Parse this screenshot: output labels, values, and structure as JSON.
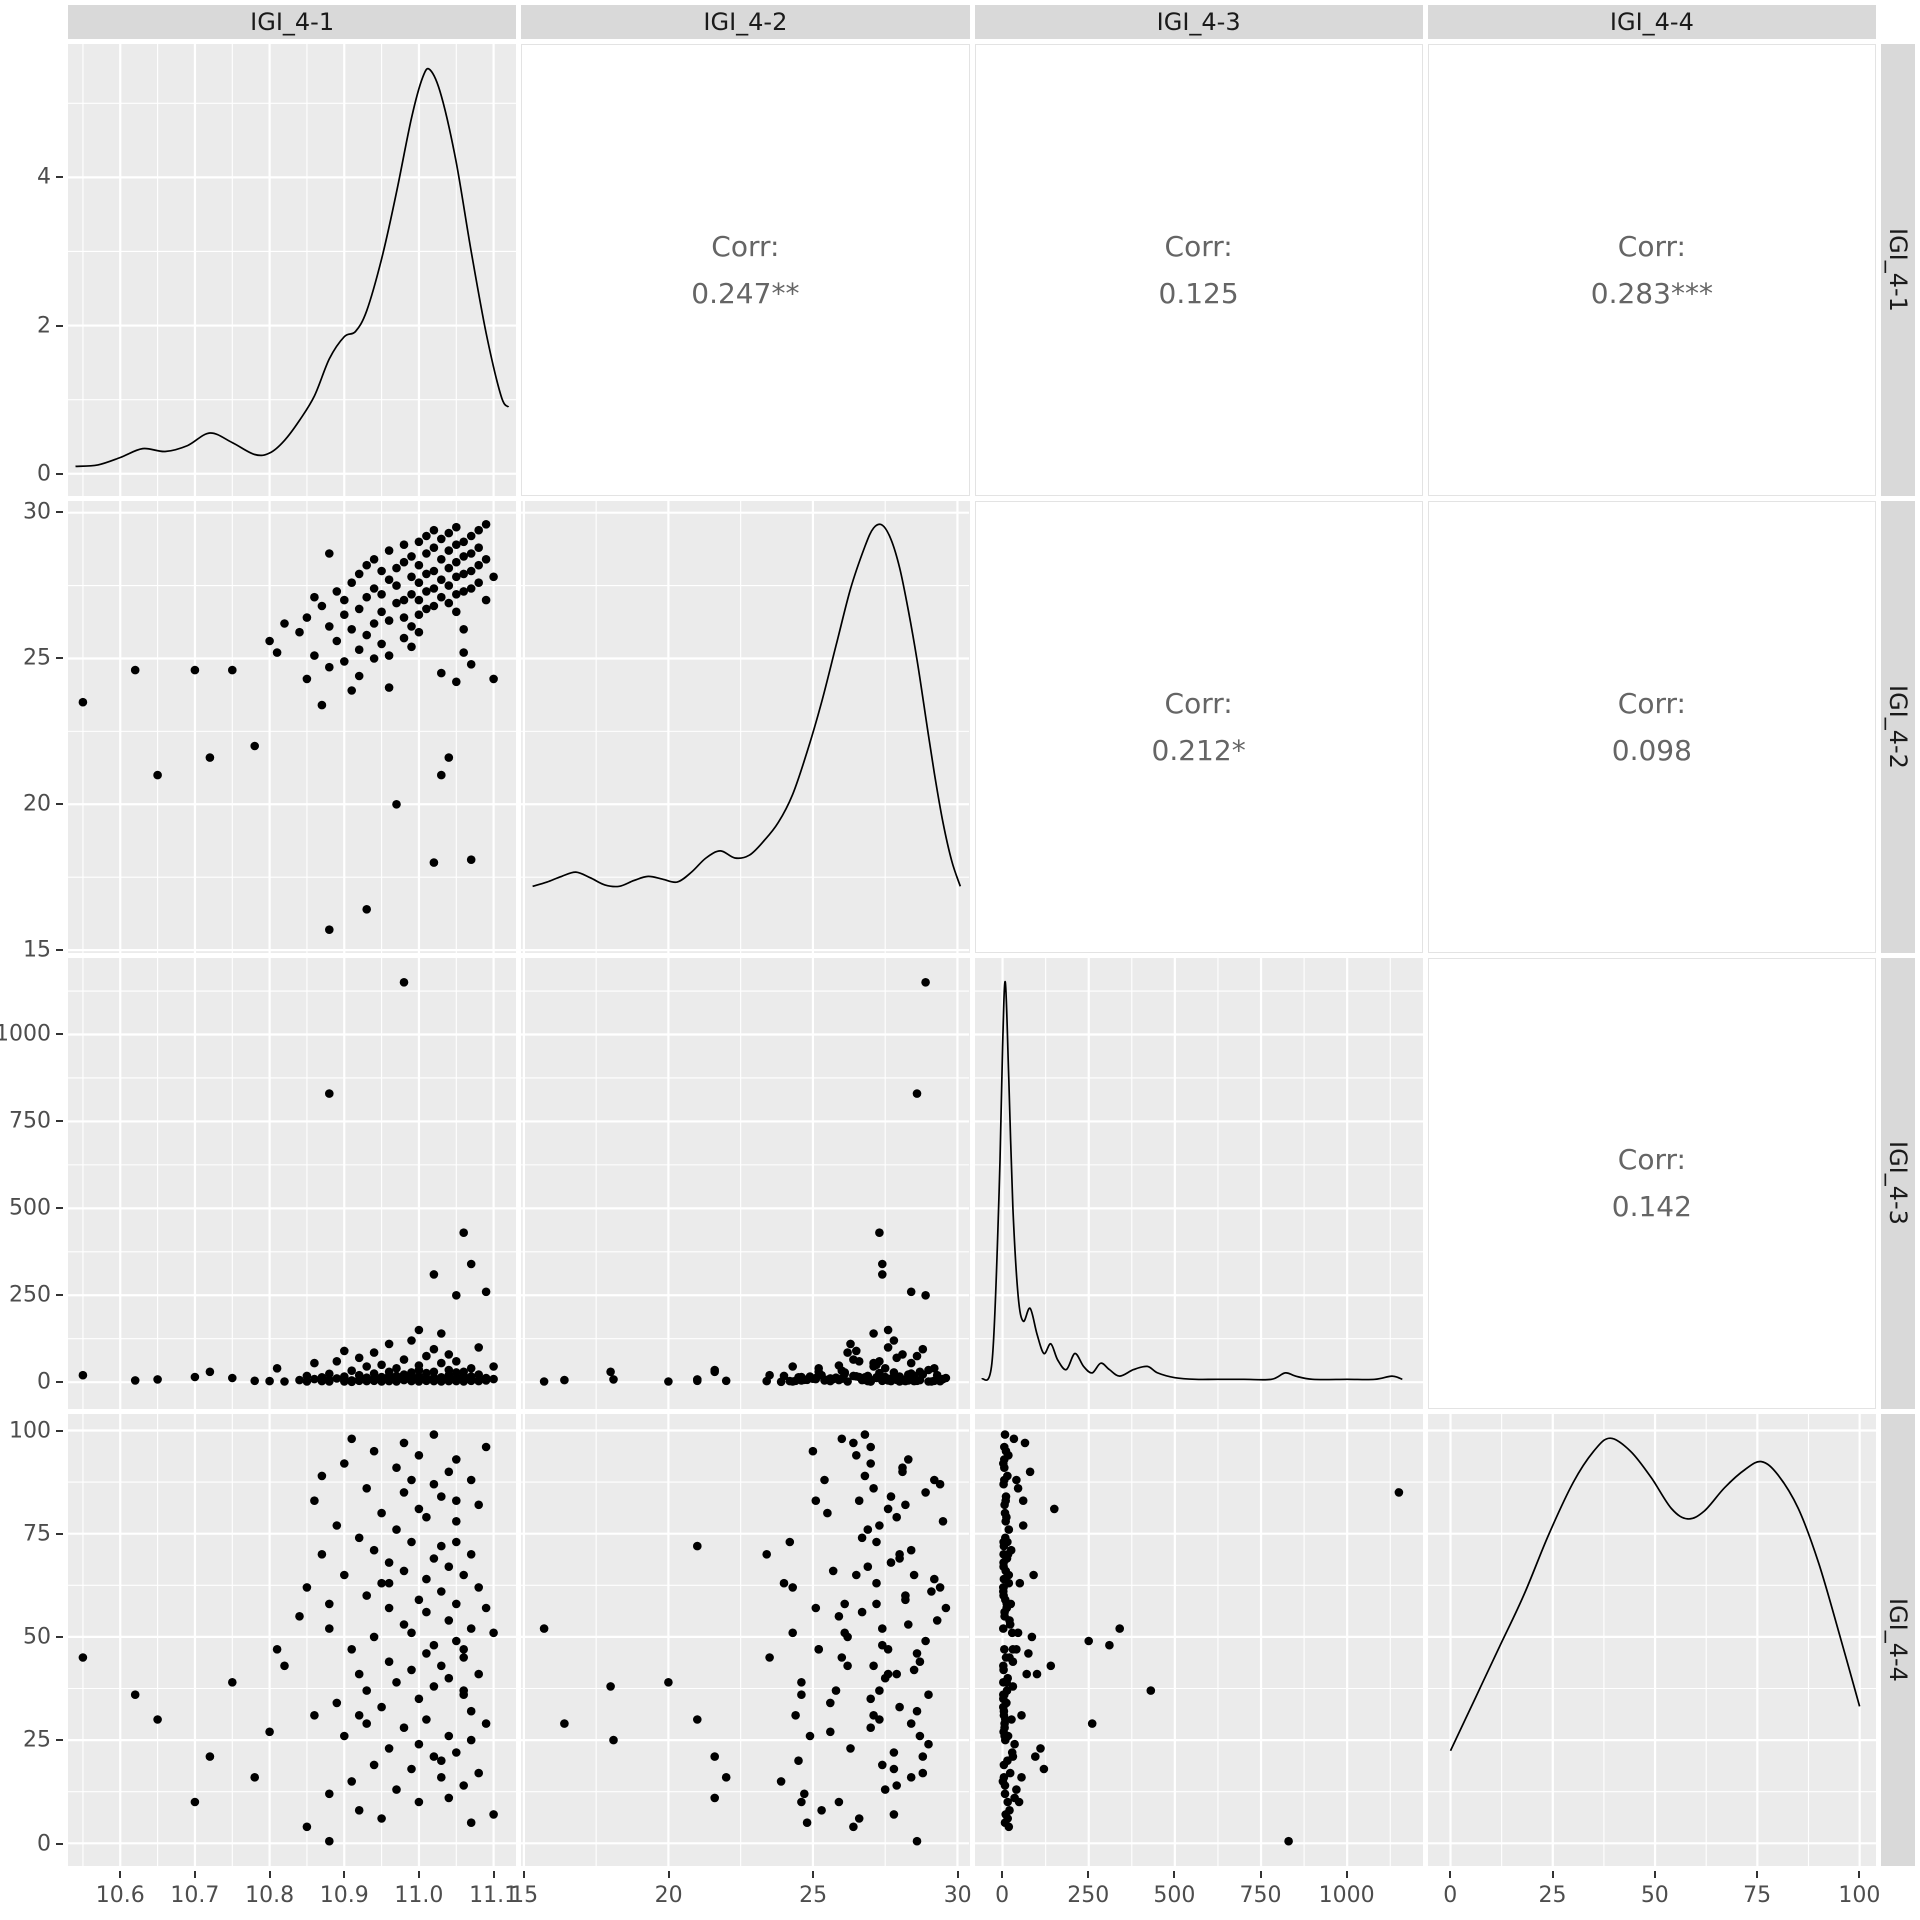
{
  "colors": {
    "panel_bg": "#EBEBEB",
    "grid": "#FFFFFF",
    "strip_bg": "#D9D9D9",
    "point": "#000000",
    "line": "#000000",
    "corr_text": "#656565",
    "tick_text": "#4D4D4D"
  },
  "chart_data": {
    "type": "scatter",
    "subtype": "scatterplot-matrix-ggpairs",
    "variables": [
      "IGI_4-1",
      "IGI_4-2",
      "IGI_4-3",
      "IGI_4-4"
    ],
    "corr_prefix": "Corr:",
    "correlations": {
      "r0c1": "0.247**",
      "r0c2": "0.125",
      "r0c3": "0.283***",
      "r1c2": "0.212*",
      "r1c3": "0.098",
      "r2c3": "0.142"
    },
    "axes": [
      {
        "name": "IGI_4-1",
        "domain": [
          10.53,
          11.13
        ],
        "ticks": [
          10.6,
          10.7,
          10.8,
          10.9,
          11.0,
          11.1
        ],
        "tick_labels": [
          "10.6",
          "10.7",
          "10.8",
          "10.9",
          "11.0",
          "11.1"
        ]
      },
      {
        "name": "IGI_4-2",
        "domain": [
          14.9,
          30.4
        ],
        "ticks": [
          15,
          20,
          25,
          30
        ],
        "tick_labels": [
          "15",
          "20",
          "25",
          "30"
        ]
      },
      {
        "name": "IGI_4-3",
        "domain": [
          -80,
          1220
        ],
        "ticks": [
          0,
          250,
          500,
          750,
          1000
        ],
        "tick_labels": [
          "0",
          "250",
          "500",
          "750",
          "1000"
        ]
      },
      {
        "name": "IGI_4-4",
        "domain": [
          -5.5,
          104
        ],
        "ticks": [
          0,
          25,
          50,
          75,
          100
        ],
        "tick_labels": [
          "0",
          "25",
          "50",
          "75",
          "100"
        ]
      }
    ],
    "density_axis": {
      "domain": [
        -0.3,
        5.8
      ],
      "ticks": [
        0,
        2,
        4
      ],
      "tick_labels": [
        "0",
        "2",
        "4"
      ]
    },
    "densities": [
      [
        [
          10.54,
          0.1
        ],
        [
          10.57,
          0.12
        ],
        [
          10.6,
          0.22
        ],
        [
          10.63,
          0.34
        ],
        [
          10.66,
          0.3
        ],
        [
          10.69,
          0.38
        ],
        [
          10.72,
          0.55
        ],
        [
          10.75,
          0.42
        ],
        [
          10.78,
          0.26
        ],
        [
          10.8,
          0.28
        ],
        [
          10.82,
          0.45
        ],
        [
          10.84,
          0.72
        ],
        [
          10.86,
          1.05
        ],
        [
          10.88,
          1.55
        ],
        [
          10.9,
          1.85
        ],
        [
          10.915,
          1.92
        ],
        [
          10.93,
          2.2
        ],
        [
          10.95,
          2.9
        ],
        [
          10.97,
          3.8
        ],
        [
          10.99,
          4.8
        ],
        [
          11.005,
          5.35
        ],
        [
          11.015,
          5.45
        ],
        [
          11.03,
          5.1
        ],
        [
          11.05,
          4.2
        ],
        [
          11.07,
          3.0
        ],
        [
          11.09,
          1.9
        ],
        [
          11.11,
          1.05
        ],
        [
          11.12,
          0.9
        ]
      ],
      [
        [
          15.3,
          0.03
        ],
        [
          15.8,
          0.033
        ],
        [
          16.3,
          0.037
        ],
        [
          16.8,
          0.04
        ],
        [
          17.3,
          0.036
        ],
        [
          17.8,
          0.031
        ],
        [
          18.3,
          0.03
        ],
        [
          18.8,
          0.034
        ],
        [
          19.3,
          0.037
        ],
        [
          19.8,
          0.035
        ],
        [
          20.3,
          0.033
        ],
        [
          20.8,
          0.04
        ],
        [
          21.3,
          0.05
        ],
        [
          21.8,
          0.055
        ],
        [
          22.3,
          0.05
        ],
        [
          22.8,
          0.052
        ],
        [
          23.3,
          0.062
        ],
        [
          23.8,
          0.075
        ],
        [
          24.3,
          0.095
        ],
        [
          24.8,
          0.125
        ],
        [
          25.3,
          0.16
        ],
        [
          25.8,
          0.2
        ],
        [
          26.3,
          0.24
        ],
        [
          26.8,
          0.27
        ],
        [
          27.1,
          0.283
        ],
        [
          27.4,
          0.285
        ],
        [
          27.7,
          0.275
        ],
        [
          28.0,
          0.255
        ],
        [
          28.3,
          0.225
        ],
        [
          28.6,
          0.19
        ],
        [
          28.9,
          0.15
        ],
        [
          29.2,
          0.11
        ],
        [
          29.5,
          0.075
        ],
        [
          29.8,
          0.048
        ],
        [
          30.1,
          0.03
        ]
      ],
      [
        [
          -60,
          0.0002
        ],
        [
          -30,
          0.0008
        ],
        [
          -10,
          0.006
        ],
        [
          0,
          0.0105
        ],
        [
          8,
          0.0125
        ],
        [
          18,
          0.0095
        ],
        [
          30,
          0.0055
        ],
        [
          45,
          0.0028
        ],
        [
          60,
          0.002
        ],
        [
          80,
          0.0024
        ],
        [
          100,
          0.0016
        ],
        [
          120,
          0.001
        ],
        [
          140,
          0.0013
        ],
        [
          160,
          0.0008
        ],
        [
          185,
          0.0005
        ],
        [
          210,
          0.001
        ],
        [
          235,
          0.0006
        ],
        [
          260,
          0.0004
        ],
        [
          285,
          0.0007
        ],
        [
          310,
          0.0005
        ],
        [
          340,
          0.0003
        ],
        [
          380,
          0.0005
        ],
        [
          420,
          0.0006
        ],
        [
          450,
          0.0004
        ],
        [
          500,
          0.00025
        ],
        [
          560,
          0.0002
        ],
        [
          620,
          0.0002
        ],
        [
          700,
          0.0002
        ],
        [
          780,
          0.0002
        ],
        [
          820,
          0.0004
        ],
        [
          850,
          0.0003
        ],
        [
          900,
          0.0002
        ],
        [
          1000,
          0.0002
        ],
        [
          1080,
          0.0002
        ],
        [
          1130,
          0.0003
        ],
        [
          1160,
          0.0002
        ]
      ],
      [
        [
          0,
          0.0035
        ],
        [
          6,
          0.0055
        ],
        [
          12,
          0.0075
        ],
        [
          18,
          0.0095
        ],
        [
          24,
          0.0118
        ],
        [
          30,
          0.0138
        ],
        [
          35,
          0.015
        ],
        [
          39,
          0.0155
        ],
        [
          44,
          0.015
        ],
        [
          49,
          0.014
        ],
        [
          54,
          0.0128
        ],
        [
          58,
          0.0124
        ],
        [
          62,
          0.0127
        ],
        [
          67,
          0.0136
        ],
        [
          72,
          0.0143
        ],
        [
          76,
          0.0146
        ],
        [
          80,
          0.0141
        ],
        [
          85,
          0.0128
        ],
        [
          90,
          0.0107
        ],
        [
          95,
          0.008
        ],
        [
          100,
          0.0052
        ]
      ]
    ],
    "points": [
      [
        10.55,
        23.5,
        20,
        45
      ],
      [
        10.62,
        24.6,
        5,
        36
      ],
      [
        10.65,
        21.0,
        8,
        30
      ],
      [
        10.7,
        24.6,
        15,
        10
      ],
      [
        10.72,
        21.6,
        30,
        21
      ],
      [
        10.75,
        24.6,
        12,
        39
      ],
      [
        10.78,
        22.0,
        4,
        16
      ],
      [
        10.8,
        25.6,
        3,
        27
      ],
      [
        10.81,
        25.2,
        40,
        47
      ],
      [
        10.82,
        26.2,
        2,
        43
      ],
      [
        10.84,
        25.9,
        6,
        55
      ],
      [
        10.85,
        26.4,
        18,
        4
      ],
      [
        10.85,
        24.3,
        2,
        62
      ],
      [
        10.86,
        27.1,
        55,
        31
      ],
      [
        10.86,
        25.1,
        9,
        83
      ],
      [
        10.87,
        26.8,
        14,
        89
      ],
      [
        10.87,
        23.4,
        3,
        70
      ],
      [
        10.88,
        28.6,
        830,
        0.5
      ],
      [
        10.88,
        26.1,
        24,
        58
      ],
      [
        10.88,
        24.7,
        7,
        12
      ],
      [
        10.88,
        15.7,
        2,
        52
      ],
      [
        10.89,
        27.3,
        60,
        77
      ],
      [
        10.89,
        25.6,
        11,
        34
      ],
      [
        10.9,
        27.0,
        2,
        92
      ],
      [
        10.9,
        26.5,
        90,
        65
      ],
      [
        10.9,
        24.9,
        16,
        26
      ],
      [
        10.91,
        27.6,
        5,
        47
      ],
      [
        10.91,
        26.0,
        33,
        98
      ],
      [
        10.91,
        23.9,
        1,
        15
      ],
      [
        10.92,
        27.9,
        70,
        41
      ],
      [
        10.92,
        26.7,
        8,
        74
      ],
      [
        10.92,
        25.3,
        20,
        8
      ],
      [
        10.92,
        24.4,
        4,
        31
      ],
      [
        10.93,
        28.2,
        3,
        60
      ],
      [
        10.93,
        27.1,
        45,
        86
      ],
      [
        10.93,
        25.8,
        13,
        37
      ],
      [
        10.93,
        16.4,
        6,
        29
      ],
      [
        10.94,
        28.4,
        25,
        71
      ],
      [
        10.94,
        27.4,
        4,
        19
      ],
      [
        10.94,
        26.2,
        85,
        50
      ],
      [
        10.94,
        25.0,
        10,
        95
      ],
      [
        10.95,
        28.0,
        2,
        33
      ],
      [
        10.95,
        27.2,
        50,
        63
      ],
      [
        10.95,
        26.6,
        15,
        6
      ],
      [
        10.95,
        25.5,
        7,
        80
      ],
      [
        10.96,
        28.7,
        30,
        44
      ],
      [
        10.96,
        27.7,
        3,
        68
      ],
      [
        10.96,
        26.3,
        110,
        23
      ],
      [
        10.96,
        25.1,
        12,
        57
      ],
      [
        10.96,
        24.0,
        18,
        63
      ],
      [
        10.97,
        28.1,
        5,
        91
      ],
      [
        10.97,
        27.5,
        40,
        13
      ],
      [
        10.97,
        26.9,
        18,
        76
      ],
      [
        10.97,
        20.0,
        2,
        39
      ],
      [
        10.98,
        28.9,
        1150,
        85
      ],
      [
        10.98,
        28.3,
        22,
        53
      ],
      [
        10.98,
        27.0,
        6,
        28
      ],
      [
        10.98,
        26.4,
        65,
        97
      ],
      [
        10.98,
        25.7,
        9,
        66
      ],
      [
        10.99,
        28.5,
        3,
        42
      ],
      [
        10.99,
        27.8,
        120,
        18
      ],
      [
        10.99,
        27.2,
        14,
        73
      ],
      [
        10.99,
        26.1,
        28,
        51
      ],
      [
        10.99,
        25.4,
        5,
        88
      ],
      [
        11.0,
        29.0,
        35,
        24
      ],
      [
        11.0,
        28.2,
        8,
        59
      ],
      [
        11.0,
        27.6,
        150,
        81
      ],
      [
        11.0,
        27.0,
        2,
        35
      ],
      [
        11.0,
        26.5,
        17,
        94
      ],
      [
        11.0,
        25.9,
        48,
        10
      ],
      [
        11.01,
        29.2,
        4,
        64
      ],
      [
        11.01,
        28.6,
        75,
        46
      ],
      [
        11.01,
        27.9,
        11,
        79
      ],
      [
        11.01,
        27.3,
        26,
        30
      ],
      [
        11.01,
        26.7,
        6,
        56
      ],
      [
        11.02,
        29.4,
        3,
        87
      ],
      [
        11.02,
        28.8,
        95,
        21
      ],
      [
        11.02,
        28.0,
        13,
        69
      ],
      [
        11.02,
        27.4,
        310,
        48
      ],
      [
        11.02,
        26.8,
        7,
        99
      ],
      [
        11.02,
        18.0,
        30,
        38
      ],
      [
        11.03,
        29.1,
        2,
        61
      ],
      [
        11.03,
        28.4,
        55,
        16
      ],
      [
        11.03,
        27.7,
        10,
        84
      ],
      [
        11.03,
        27.1,
        140,
        43
      ],
      [
        11.03,
        24.5,
        14,
        20
      ],
      [
        11.03,
        21.0,
        4,
        72
      ],
      [
        11.04,
        29.3,
        20,
        54
      ],
      [
        11.04,
        28.7,
        6,
        26
      ],
      [
        11.04,
        28.1,
        80,
        90
      ],
      [
        11.04,
        27.5,
        15,
        40
      ],
      [
        11.04,
        26.9,
        3,
        67
      ],
      [
        11.04,
        21.6,
        35,
        11
      ],
      [
        11.05,
        29.5,
        9,
        78
      ],
      [
        11.05,
        28.9,
        250,
        49
      ],
      [
        11.05,
        28.3,
        5,
        93
      ],
      [
        11.05,
        27.8,
        28,
        22
      ],
      [
        11.05,
        27.2,
        12,
        58
      ],
      [
        11.05,
        26.6,
        60,
        83
      ],
      [
        11.05,
        24.2,
        3,
        73
      ],
      [
        11.06,
        29.0,
        2,
        36
      ],
      [
        11.06,
        28.5,
        18,
        65
      ],
      [
        11.06,
        27.9,
        7,
        14
      ],
      [
        11.06,
        27.3,
        430,
        37
      ],
      [
        11.06,
        26.0,
        10,
        45
      ],
      [
        11.06,
        25.2,
        30,
        47
      ],
      [
        11.07,
        29.2,
        40,
        88
      ],
      [
        11.07,
        28.6,
        4,
        32
      ],
      [
        11.07,
        28.0,
        16,
        70
      ],
      [
        11.07,
        27.4,
        340,
        52
      ],
      [
        11.07,
        24.8,
        7,
        5
      ],
      [
        11.07,
        18.1,
        8,
        25
      ],
      [
        11.08,
        29.4,
        3,
        62
      ],
      [
        11.08,
        28.8,
        22,
        17
      ],
      [
        11.08,
        28.2,
        6,
        82
      ],
      [
        11.08,
        27.6,
        100,
        41
      ],
      [
        11.09,
        29.6,
        12,
        57
      ],
      [
        11.09,
        28.4,
        260,
        29
      ],
      [
        11.09,
        27.0,
        5,
        96
      ],
      [
        11.1,
        24.3,
        45,
        51
      ],
      [
        11.1,
        27.8,
        9,
        7
      ]
    ]
  }
}
